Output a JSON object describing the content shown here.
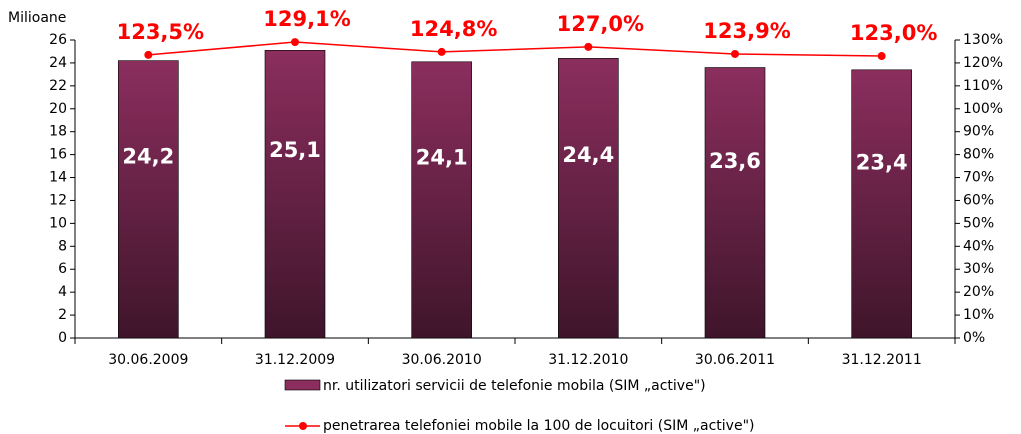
{
  "chart_data": {
    "type": "bar_line",
    "y_axis_label": "Milioane",
    "categories": [
      "30.06.2009",
      "31.12.2009",
      "30.06.2010",
      "31.12.2010",
      "30.06.2011",
      "31.12.2011"
    ],
    "series": [
      {
        "name": "nr. utilizatori servicii de telefonie mobila (SIM „active\")",
        "color": "#8b2e5e",
        "values": [
          24.2,
          25.1,
          24.1,
          24.4,
          23.6,
          23.4
        ],
        "value_labels": [
          "24,2",
          "25,1",
          "24,1",
          "24,4",
          "23,6",
          "23,4"
        ]
      },
      {
        "name": "penetrarea telefoniei mobile la 100 de locuitori (SIM „active\")",
        "color": "#ff0000",
        "axis": "y2",
        "values": [
          123.5,
          129.1,
          124.8,
          127.0,
          123.9,
          123.0
        ],
        "value_labels": [
          "123,5%",
          "129,1%",
          "124,8%",
          "127,0%",
          "123,9%",
          "123,0%"
        ]
      }
    ],
    "ylim": [
      0,
      26
    ],
    "yticks": [
      0,
      2,
      4,
      6,
      8,
      10,
      12,
      14,
      16,
      18,
      20,
      22,
      24,
      26
    ],
    "y2lim": [
      0,
      130
    ],
    "y2ticks": [
      {
        "value": 0,
        "label": "0%"
      },
      {
        "value": 10,
        "label": "10%"
      },
      {
        "value": 20,
        "label": "20%"
      },
      {
        "value": 30,
        "label": "30%"
      },
      {
        "value": 40,
        "label": "40%"
      },
      {
        "value": 50,
        "label": "50%"
      },
      {
        "value": 60,
        "label": "60%"
      },
      {
        "value": 70,
        "label": "70%"
      },
      {
        "value": 80,
        "label": "80%"
      },
      {
        "value": 90,
        "label": "90%"
      },
      {
        "value": 100,
        "label": "100%"
      },
      {
        "value": 110,
        "label": "110%"
      },
      {
        "value": 120,
        "label": "120%"
      },
      {
        "value": 130,
        "label": "130%"
      }
    ],
    "legend": "bottom"
  }
}
